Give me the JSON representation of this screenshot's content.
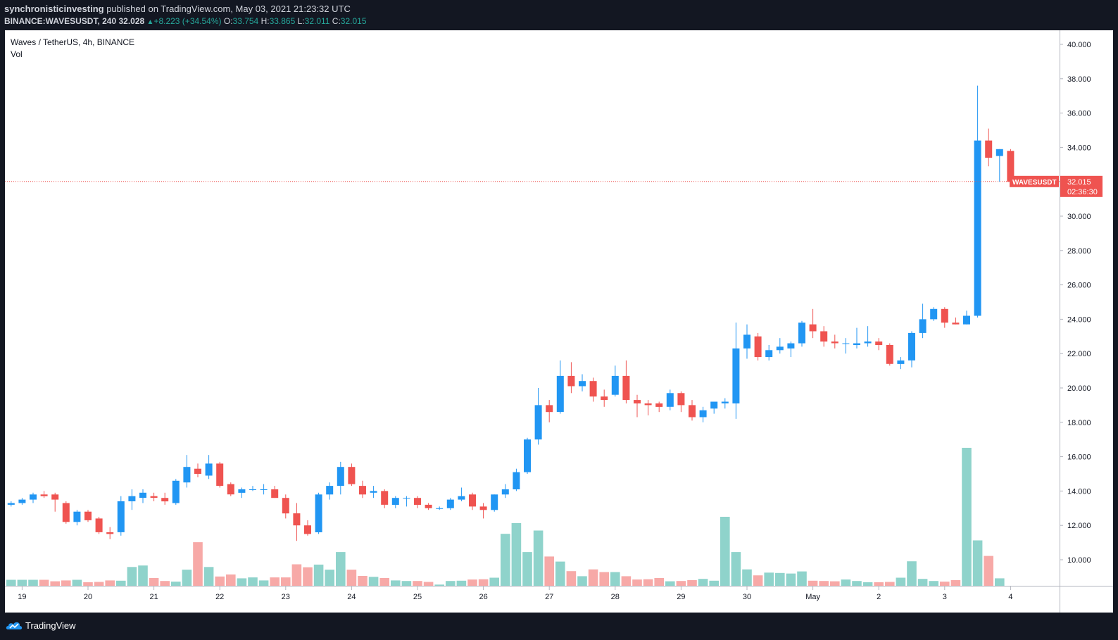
{
  "header": {
    "publisher": "synchronisticinvesting",
    "published_text": " published on TradingView.com, May 03, 2021 21:23:32 UTC",
    "symbol": "BINANCE:WAVESUSDT, 240",
    "last": "32.028",
    "change": "+8.223 (+34.54%)",
    "o_label": "O:",
    "o": "33.754",
    "h_label": "H:",
    "h": "33.865",
    "l_label": "L:",
    "l": "32.011",
    "c_label": "C:",
    "c": "32.015"
  },
  "legend": {
    "title": "Waves / TetherUS, 4h, BINANCE",
    "vol": "Vol"
  },
  "price_tag": {
    "symbol": "WAVESUSDT",
    "price": "32.015",
    "countdown": "02:36:30"
  },
  "footer": {
    "brand": "TradingView"
  },
  "colors": {
    "up": "#2196f3",
    "down": "#ef5350",
    "vol_up": "#8fd3cb",
    "vol_down": "#f7a9a7",
    "price_line": "#ef5350",
    "background": "#131722"
  },
  "chart_data": {
    "type": "candlestick",
    "yticks": [
      "10.000",
      "12.000",
      "14.000",
      "16.000",
      "18.000",
      "20.000",
      "22.000",
      "24.000",
      "26.000",
      "28.000",
      "30.000",
      "32.000",
      "34.000",
      "36.000",
      "38.000",
      "40.000"
    ],
    "xticks": [
      {
        "label": "19",
        "index": 1.5
      },
      {
        "label": "20",
        "index": 7.5
      },
      {
        "label": "21",
        "index": 13.5
      },
      {
        "label": "22",
        "index": 19.5
      },
      {
        "label": "23",
        "index": 25.5
      },
      {
        "label": "24",
        "index": 31.5
      },
      {
        "label": "25",
        "index": 37.5
      },
      {
        "label": "26",
        "index": 43.5
      },
      {
        "label": "27",
        "index": 49.5
      },
      {
        "label": "28",
        "index": 55.5
      },
      {
        "label": "29",
        "index": 61.5
      },
      {
        "label": "30",
        "index": 67.5
      },
      {
        "label": "May",
        "index": 73.5
      },
      {
        "label": "2",
        "index": 79.5
      },
      {
        "label": "3",
        "index": 85.5
      },
      {
        "label": "4",
        "index": 91.5
      }
    ],
    "ylim": [
      8.5,
      41
    ],
    "last_price": 32.015,
    "candles": [
      [
        13.2,
        13.4,
        13.1,
        13.3
      ],
      [
        13.3,
        13.6,
        13.2,
        13.5
      ],
      [
        13.5,
        13.9,
        13.3,
        13.8
      ],
      [
        13.8,
        14.0,
        13.6,
        13.7
      ],
      [
        13.8,
        13.9,
        12.8,
        13.5
      ],
      [
        13.3,
        13.4,
        12.1,
        12.2
      ],
      [
        12.2,
        12.9,
        12.0,
        12.8
      ],
      [
        12.8,
        12.9,
        12.2,
        12.3
      ],
      [
        12.4,
        12.5,
        11.5,
        11.6
      ],
      [
        11.6,
        11.9,
        11.2,
        11.5
      ],
      [
        11.6,
        13.7,
        11.4,
        13.4
      ],
      [
        13.4,
        14.1,
        12.9,
        13.7
      ],
      [
        13.6,
        14.1,
        13.3,
        13.9
      ],
      [
        13.7,
        13.9,
        13.4,
        13.6
      ],
      [
        13.6,
        13.9,
        13.2,
        13.4
      ],
      [
        13.3,
        14.7,
        13.2,
        14.6
      ],
      [
        14.5,
        16.1,
        14.2,
        15.4
      ],
      [
        15.3,
        15.6,
        14.8,
        15.0
      ],
      [
        14.9,
        16.1,
        14.7,
        15.6
      ],
      [
        15.6,
        15.7,
        14.2,
        14.3
      ],
      [
        14.4,
        14.5,
        13.7,
        13.8
      ],
      [
        13.9,
        14.2,
        13.6,
        14.1
      ],
      [
        14.1,
        14.3,
        14.0,
        14.1
      ],
      [
        14.1,
        14.4,
        13.8,
        14.1
      ],
      [
        14.1,
        14.3,
        13.6,
        13.6
      ],
      [
        13.6,
        13.8,
        12.4,
        12.7
      ],
      [
        12.7,
        13.3,
        11.1,
        12.0
      ],
      [
        12.0,
        12.3,
        11.4,
        11.5
      ],
      [
        11.6,
        13.9,
        11.5,
        13.8
      ],
      [
        13.8,
        14.5,
        13.5,
        14.3
      ],
      [
        14.3,
        15.7,
        13.8,
        15.4
      ],
      [
        15.4,
        15.6,
        14.3,
        14.4
      ],
      [
        14.3,
        14.6,
        13.6,
        13.8
      ],
      [
        13.9,
        14.3,
        13.6,
        14.0
      ],
      [
        14.0,
        14.1,
        13.0,
        13.2
      ],
      [
        13.2,
        13.7,
        13.0,
        13.6
      ],
      [
        13.6,
        13.7,
        13.1,
        13.6
      ],
      [
        13.6,
        13.7,
        13.0,
        13.2
      ],
      [
        13.2,
        13.3,
        12.9,
        13.0
      ],
      [
        13.0,
        13.1,
        12.9,
        13.0
      ],
      [
        13.0,
        13.6,
        12.9,
        13.5
      ],
      [
        13.5,
        14.2,
        13.4,
        13.7
      ],
      [
        13.8,
        13.9,
        12.9,
        13.1
      ],
      [
        13.1,
        13.3,
        12.4,
        12.9
      ],
      [
        12.9,
        13.8,
        12.8,
        13.8
      ],
      [
        13.8,
        14.4,
        13.6,
        14.1
      ],
      [
        14.1,
        15.3,
        14.0,
        15.1
      ],
      [
        15.1,
        17.1,
        15.0,
        17.0
      ],
      [
        17.0,
        20.0,
        16.7,
        19.0
      ],
      [
        19.0,
        19.3,
        18.0,
        18.6
      ],
      [
        18.6,
        21.6,
        18.5,
        20.7
      ],
      [
        20.7,
        21.5,
        19.7,
        20.1
      ],
      [
        20.1,
        20.8,
        19.8,
        20.4
      ],
      [
        20.4,
        20.6,
        19.2,
        19.5
      ],
      [
        19.5,
        19.9,
        18.9,
        19.3
      ],
      [
        19.6,
        21.3,
        19.5,
        20.7
      ],
      [
        20.7,
        21.6,
        19.1,
        19.3
      ],
      [
        19.3,
        19.6,
        18.3,
        19.1
      ],
      [
        19.1,
        19.3,
        18.4,
        19.0
      ],
      [
        19.1,
        19.2,
        18.6,
        18.9
      ],
      [
        18.9,
        19.9,
        18.7,
        19.7
      ],
      [
        19.7,
        19.8,
        18.6,
        19.0
      ],
      [
        19.0,
        19.3,
        18.1,
        18.3
      ],
      [
        18.3,
        18.9,
        18.0,
        18.7
      ],
      [
        18.8,
        19.2,
        18.5,
        19.2
      ],
      [
        19.1,
        19.4,
        18.8,
        19.2
      ],
      [
        19.1,
        23.8,
        18.2,
        22.3
      ],
      [
        22.3,
        23.7,
        21.7,
        23.1
      ],
      [
        23.0,
        23.2,
        21.6,
        21.8
      ],
      [
        21.8,
        22.5,
        21.6,
        22.2
      ],
      [
        22.2,
        22.9,
        22.0,
        22.4
      ],
      [
        22.3,
        22.7,
        21.8,
        22.6
      ],
      [
        22.6,
        23.9,
        22.4,
        23.8
      ],
      [
        23.7,
        24.6,
        22.9,
        23.3
      ],
      [
        23.3,
        23.6,
        22.4,
        22.7
      ],
      [
        22.7,
        23.1,
        22.3,
        22.6
      ],
      [
        22.6,
        22.9,
        22.0,
        22.6
      ],
      [
        22.5,
        23.5,
        22.3,
        22.6
      ],
      [
        22.6,
        23.6,
        22.4,
        22.7
      ],
      [
        22.7,
        22.9,
        22.2,
        22.5
      ],
      [
        22.5,
        22.6,
        21.3,
        21.4
      ],
      [
        21.4,
        21.8,
        21.1,
        21.6
      ],
      [
        21.6,
        23.3,
        21.2,
        23.2
      ],
      [
        23.2,
        24.9,
        22.9,
        24.0
      ],
      [
        24.0,
        24.7,
        23.9,
        24.6
      ],
      [
        24.6,
        24.7,
        23.5,
        23.8
      ],
      [
        23.8,
        24.1,
        23.7,
        23.7
      ],
      [
        23.7,
        24.5,
        23.7,
        24.2
      ],
      [
        24.2,
        37.6,
        24.1,
        34.4
      ],
      [
        34.4,
        35.1,
        32.9,
        33.4
      ],
      [
        33.5,
        33.9,
        32.0,
        33.9
      ],
      [
        33.8,
        33.9,
        32.0,
        32.0
      ]
    ],
    "volumes": [
      2,
      2,
      2,
      2,
      1.5,
      1.8,
      2,
      1.2,
      1.3,
      1.8,
      1.7,
      6.3,
      6.8,
      2.6,
      1.6,
      1.4,
      5.4,
      14.6,
      6.3,
      3.1,
      3.8,
      2.5,
      2.8,
      1.8,
      2.8,
      2.8,
      7.2,
      6.2,
      7.1,
      5.4,
      11.3,
      5.4,
      3.3,
      3.0,
      2.6,
      1.8,
      1.6,
      1.6,
      1.3,
      0.4,
      1.6,
      1.7,
      2.1,
      2.2,
      2.7,
      17.4,
      21.0,
      11.3,
      18.5,
      9.8,
      8.1,
      4.9,
      3.2,
      5.5,
      4.6,
      4.6,
      3.2,
      2.1,
      2.2,
      2.6,
      1.5,
      1.6,
      1.9,
      2.3,
      1.7,
      23.1,
      11.3,
      5.5,
      3.5,
      4.4,
      4.3,
      4.1,
      4.8,
      1.7,
      1.6,
      1.5,
      2.1,
      1.6,
      1.2,
      1.2,
      1.3,
      2.7,
      8.2,
      2.3,
      1.6,
      1.4,
      1.9,
      46.2,
      15.2,
      10.0,
      2.5
    ],
    "volume_scale_max": 46.2
  }
}
